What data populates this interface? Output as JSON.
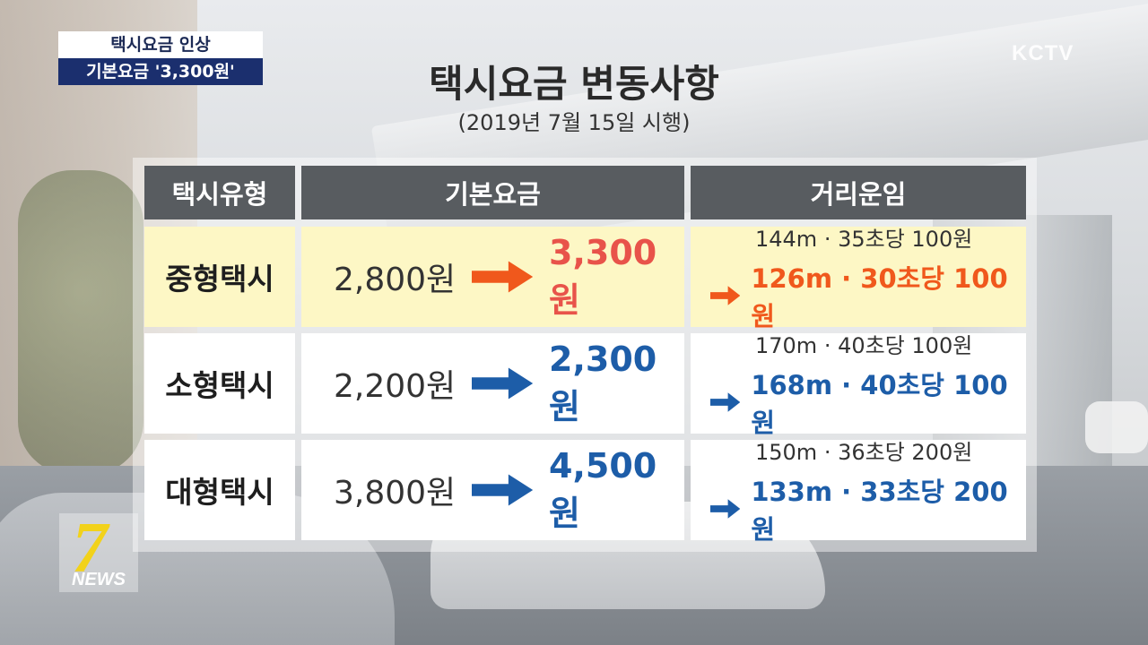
{
  "caption": {
    "line1": "택시요금 인상",
    "line2": "기본요금 '3,300원'"
  },
  "broadcaster": "KCTV",
  "title": "택시요금 변동사항",
  "subtitle": "(2019년 7월 15일 시행)",
  "table": {
    "headers": [
      "택시유형",
      "기본요금",
      "거리운임"
    ],
    "rows": [
      {
        "type": "중형택시",
        "old_fare": "2,800원",
        "new_fare": "3,300원",
        "old_distance": "144m · 35초당 100원",
        "new_distance": "126m · 30초당 100원",
        "highlight": true,
        "accent": "#f0581c"
      },
      {
        "type": "소형택시",
        "old_fare": "2,200원",
        "new_fare": "2,300원",
        "old_distance": "170m · 40초당 100원",
        "new_distance": "168m · 40초당 100원",
        "highlight": false,
        "accent": "#1d5da8"
      },
      {
        "type": "대형택시",
        "old_fare": "3,800원",
        "new_fare": "4,500원",
        "old_distance": "150m · 36초당 200원",
        "new_distance": "133m · 33초당 200원",
        "highlight": false,
        "accent": "#1d5da8"
      }
    ]
  },
  "logo": {
    "number": "7",
    "text": "NEWS"
  },
  "colors": {
    "header_bg": "#585c60",
    "highlight_bg": "#fdf7c5",
    "orange_accent": "#f0581c",
    "blue_accent": "#1d5da8",
    "caption_navy": "#1b2f6e"
  }
}
